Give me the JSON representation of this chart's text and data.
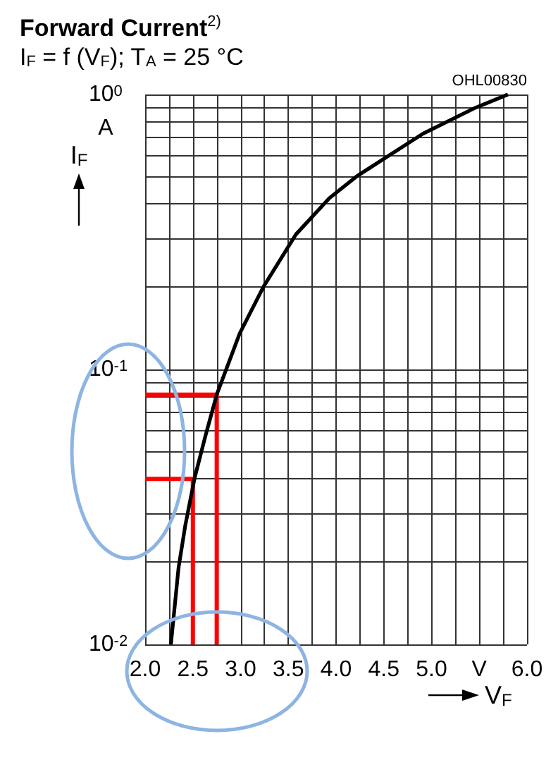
{
  "chart_data": {
    "type": "line",
    "title": "Forward Current$^{2)}$",
    "subtitle": "I$_{F}$ = f (V$_{F}$); T$_{A}$ = 25 °C",
    "xlabel": "V$_{F}$",
    "ylabel": "I$_{F}$",
    "annotations": [
      "OHL00830",
      "A"
    ],
    "series": [
      {
        "color": "#000000",
        "x": [
          2.27,
          2.35,
          2.42,
          2.52,
          2.63,
          2.75,
          2.99,
          3.24,
          3.58,
          3.93,
          4.22,
          4.91,
          5.46,
          5.8
        ],
        "values": [
          0.01,
          0.019,
          0.027,
          0.0405,
          0.057,
          0.081,
          0.135,
          0.2,
          0.31,
          0.42,
          0.505,
          0.72,
          0.895,
          1.0
        ]
      },
      {
        "color": "#ff0000",
        "x": [
          2.0,
          2.75,
          2.75
        ],
        "values": [
          0.081,
          0.081,
          0.01
        ]
      },
      {
        "color": "#ff0000",
        "x": [
          2.0,
          2.5,
          2.5
        ],
        "values": [
          0.04,
          0.04,
          0.01
        ]
      }
    ],
    "xlim": [
      2.0,
      6.0
    ],
    "xticks": [
      {
        "value": 2.0,
        "label": "2.0"
      },
      {
        "value": 2.25,
        "label": null
      },
      {
        "value": 2.5,
        "label": "2.5"
      },
      {
        "value": 2.75,
        "label": null
      },
      {
        "value": 3.0,
        "label": "3.0"
      },
      {
        "value": 3.25,
        "label": null
      },
      {
        "value": 3.5,
        "label": "3.5"
      },
      {
        "value": 3.75,
        "label": null
      },
      {
        "value": 4.0,
        "label": "4.0"
      },
      {
        "value": 4.25,
        "label": null
      },
      {
        "value": 4.5,
        "label": "4.5"
      },
      {
        "value": 4.75,
        "label": null
      },
      {
        "value": 5.0,
        "label": "5.0"
      },
      {
        "value": 5.25,
        "label": null
      },
      {
        "value": 5.5,
        "label": "V"
      },
      {
        "value": 5.75,
        "label": null
      },
      {
        "value": 6.0,
        "label": "6.0"
      }
    ],
    "ylim": [
      0.01,
      1
    ],
    "yticks": [
      {
        "value": 0.01,
        "label": "10$^{-2}$"
      },
      {
        "value": 0.02,
        "label": null
      },
      {
        "value": 0.03,
        "label": null
      },
      {
        "value": 0.04,
        "label": null
      },
      {
        "value": 0.05,
        "label": null
      },
      {
        "value": 0.06,
        "label": null
      },
      {
        "value": 0.07,
        "label": null
      },
      {
        "value": 0.08,
        "label": null
      },
      {
        "value": 0.09,
        "label": null
      },
      {
        "value": 0.1,
        "label": "10$^{-1}$"
      },
      {
        "value": 0.2,
        "label": null
      },
      {
        "value": 0.3,
        "label": null
      },
      {
        "value": 0.4,
        "label": null
      },
      {
        "value": 0.5,
        "label": null
      },
      {
        "value": 0.6,
        "label": null
      },
      {
        "value": 0.7,
        "label": null
      },
      {
        "value": 0.8,
        "label": null
      },
      {
        "value": 0.9,
        "label": null
      },
      {
        "value": 1,
        "label": "10$^{0}$"
      }
    ],
    "log": "y",
    "grid": true,
    "marker": "none",
    "line_style": "solid"
  }
}
